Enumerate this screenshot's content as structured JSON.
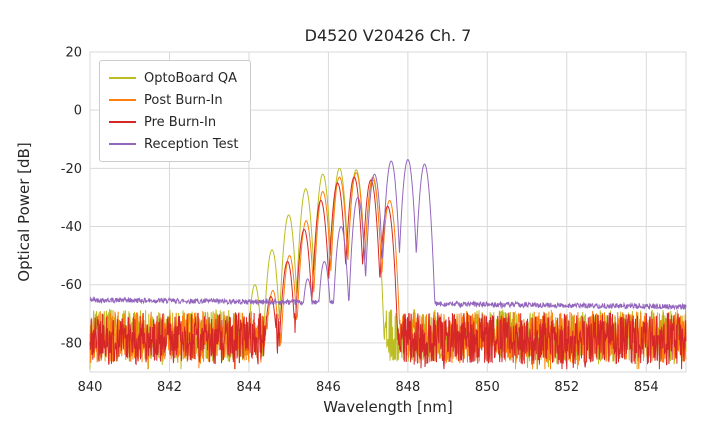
{
  "chart_data": {
    "type": "line",
    "title": "D4520 V20426 Ch. 7",
    "xlabel": "Wavelength [nm]",
    "ylabel": "Optical Power [dB]",
    "xlim": [
      840,
      855
    ],
    "ylim": [
      -90,
      20
    ],
    "xticks": [
      840,
      842,
      844,
      846,
      848,
      850,
      852,
      854
    ],
    "yticks": [
      20,
      0,
      -20,
      -40,
      -60,
      -80
    ],
    "grid": true,
    "grid_color": "#d9d9d9",
    "legend_position": "upper left",
    "sample_step_nm": 0.01,
    "series": [
      {
        "name": "OptoBoard QA",
        "color": "#bcbd22",
        "seed": 7,
        "noise_floor_db": -77.5,
        "noise_amp_db": 9,
        "noise_slope_db_per_nm": 0,
        "spike_prob": 0.07,
        "spike_extra_db": 6,
        "mode_halfwidth_nm": 0.21,
        "valley_depth_db": 30,
        "modes": [
          [
            844.15,
            -60
          ],
          [
            844.58,
            -48
          ],
          [
            845.0,
            -36
          ],
          [
            845.43,
            -27
          ],
          [
            845.86,
            -22
          ],
          [
            846.28,
            -20
          ],
          [
            846.7,
            -20.5
          ],
          [
            847.12,
            -24
          ]
        ]
      },
      {
        "name": "Post Burn-In",
        "color": "#ff7f0e",
        "seed": 13,
        "noise_floor_db": -78,
        "noise_amp_db": 9,
        "noise_slope_db_per_nm": 0,
        "spike_prob": 0.07,
        "spike_extra_db": 6,
        "mode_halfwidth_nm": 0.21,
        "valley_depth_db": 30,
        "modes": [
          [
            844.6,
            -62
          ],
          [
            845.02,
            -50
          ],
          [
            845.44,
            -38
          ],
          [
            845.86,
            -28
          ],
          [
            846.28,
            -23
          ],
          [
            846.7,
            -21.5
          ],
          [
            847.12,
            -23
          ],
          [
            847.54,
            -31
          ]
        ]
      },
      {
        "name": "Pre Burn-In",
        "color": "#d62728",
        "seed": 21,
        "noise_floor_db": -78.5,
        "noise_amp_db": 9,
        "noise_slope_db_per_nm": 0,
        "spike_prob": 0.07,
        "spike_extra_db": 6,
        "mode_halfwidth_nm": 0.21,
        "valley_depth_db": 30,
        "modes": [
          [
            844.55,
            -64
          ],
          [
            844.97,
            -52
          ],
          [
            845.39,
            -41
          ],
          [
            845.81,
            -31
          ],
          [
            846.23,
            -25
          ],
          [
            846.65,
            -23
          ],
          [
            847.07,
            -24
          ],
          [
            847.49,
            -33
          ]
        ]
      },
      {
        "name": "Reception Test",
        "color": "#9467bd",
        "seed": 42,
        "noise_floor_db": -65.2,
        "noise_amp_db": 0.9,
        "noise_slope_db_per_nm": -0.16,
        "spike_prob": 0,
        "spike_extra_db": 0,
        "mode_halfwidth_nm": 0.21,
        "valley_depth_db": 32,
        "modes": [
          [
            845.48,
            -58
          ],
          [
            845.9,
            -52
          ],
          [
            846.32,
            -40
          ],
          [
            846.74,
            -30
          ],
          [
            847.16,
            -22
          ],
          [
            847.58,
            -17.5
          ],
          [
            848.0,
            -17
          ],
          [
            848.42,
            -18.5
          ]
        ]
      }
    ]
  }
}
